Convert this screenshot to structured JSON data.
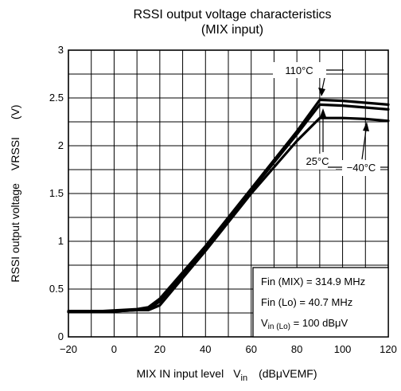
{
  "chart_data": {
    "type": "line",
    "title": "RSSI output voltage characteristics",
    "subtitle": "(MIX input)",
    "xlabel": {
      "main": "MIX IN input level",
      "symbol": "V",
      "symbol_sub": "in",
      "unit": "(dBμVEMF)"
    },
    "ylabel": {
      "main": "RSSI output voltage",
      "symbol": "VRSSI",
      "unit": "(V)"
    },
    "xlim": [
      -20,
      120
    ],
    "ylim": [
      0,
      3
    ],
    "x_ticks": [
      -20,
      0,
      20,
      40,
      60,
      80,
      100,
      120
    ],
    "y_ticks": [
      0,
      0.5,
      1,
      1.5,
      2,
      2.5,
      3
    ],
    "grid": true,
    "series": [
      {
        "name": "110°C",
        "x": [
          -20,
          -5,
          10,
          15,
          20,
          40,
          60,
          80,
          90,
          100,
          110,
          120
        ],
        "y": [
          0.27,
          0.27,
          0.29,
          0.31,
          0.4,
          0.95,
          1.55,
          2.15,
          2.48,
          2.47,
          2.45,
          2.43
        ]
      },
      {
        "name": "25°C",
        "x": [
          -20,
          -5,
          10,
          15,
          20,
          40,
          60,
          80,
          90,
          100,
          110,
          120
        ],
        "y": [
          0.26,
          0.26,
          0.28,
          0.29,
          0.37,
          0.93,
          1.53,
          2.12,
          2.43,
          2.42,
          2.4,
          2.38
        ]
      },
      {
        "name": "−40°C",
        "x": [
          -20,
          -5,
          10,
          15,
          20,
          40,
          60,
          80,
          90,
          100,
          110,
          120
        ],
        "y": [
          0.26,
          0.26,
          0.28,
          0.28,
          0.33,
          0.9,
          1.5,
          2.05,
          2.29,
          2.29,
          2.28,
          2.26
        ]
      }
    ],
    "annotations": {
      "conditions": [
        {
          "text": "Fin (MIX) = 314.9 MHz"
        },
        {
          "text": "Fin (Lo) = 40.7 MHz"
        },
        {
          "prefix": "V",
          "sub": "in (Lo)",
          "suffix": " = 100 dBμV"
        }
      ]
    }
  }
}
